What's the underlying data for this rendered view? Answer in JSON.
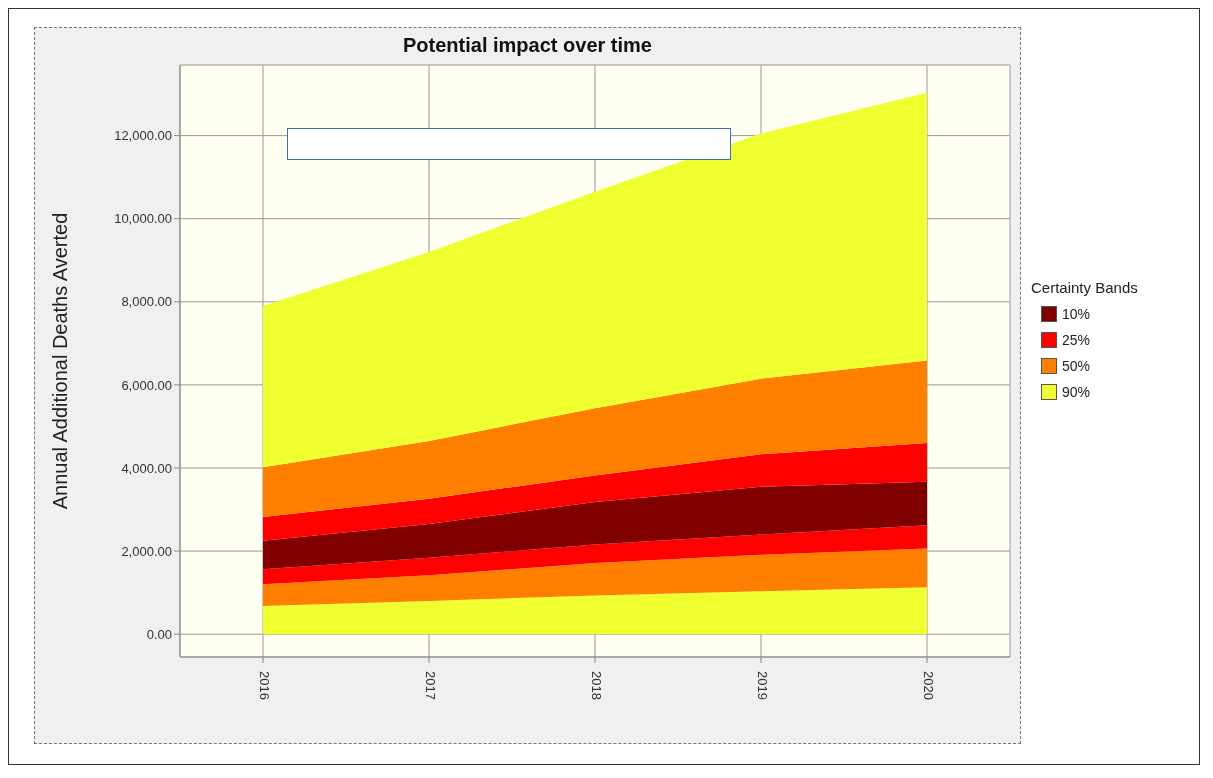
{
  "chart_data": {
    "type": "area",
    "title": "Potential impact over time",
    "ylabel": "Annual Additional Deaths Averted",
    "legend_title": "Certainty Bands",
    "stacked": true,
    "x": [
      2016,
      2017,
      2018,
      2019,
      2020
    ],
    "xlim": [
      2015.5,
      2020.5
    ],
    "xticks": [
      {
        "value": 2016,
        "label": "2016"
      },
      {
        "value": 2017,
        "label": "2017"
      },
      {
        "value": 2018,
        "label": "2018"
      },
      {
        "value": 2019,
        "label": "2019"
      },
      {
        "value": 2020,
        "label": "2020"
      }
    ],
    "ylim": [
      -550,
      13700
    ],
    "yticks": [
      {
        "value": 0,
        "label": "0.00"
      },
      {
        "value": 2000,
        "label": "2,000.00"
      },
      {
        "value": 4000,
        "label": "4,000.00"
      },
      {
        "value": 6000,
        "label": "6,000.00"
      },
      {
        "value": 8000,
        "label": "8,000.00"
      },
      {
        "value": 10000,
        "label": "10,000.00"
      },
      {
        "value": 12000,
        "label": "12,000.00"
      }
    ],
    "grid": true,
    "legend": "right",
    "series": [
      {
        "color": "#f0ff30",
        "values": [
          680,
          800,
          930,
          1030,
          1130
        ]
      },
      {
        "color": "#ff8000",
        "values": [
          520,
          620,
          780,
          880,
          930
        ]
      },
      {
        "color": "#ff0000",
        "values": [
          360,
          420,
          450,
          490,
          560
        ]
      },
      {
        "name": "10%",
        "color": "#800000",
        "values": [
          690,
          810,
          1020,
          1150,
          1050
        ]
      },
      {
        "name": "25%",
        "color": "#ff0000",
        "values": [
          570,
          610,
          640,
          780,
          930
        ]
      },
      {
        "name": "50%",
        "color": "#ff8000",
        "values": [
          1200,
          1390,
          1620,
          1820,
          1990
        ]
      },
      {
        "name": "90%",
        "color": "#f0ff30",
        "values": [
          3880,
          4550,
          5210,
          5900,
          6440
        ]
      }
    ]
  }
}
